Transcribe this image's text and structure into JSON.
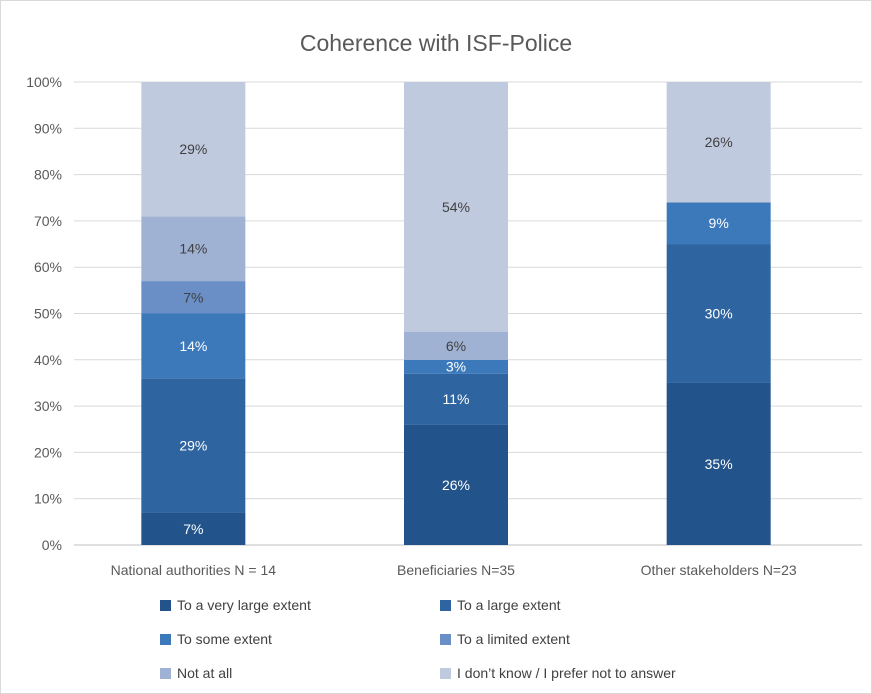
{
  "chart_data": {
    "type": "bar",
    "stacked": true,
    "title": "Coherence with ISF-Police",
    "categories": [
      "National authorities N = 14",
      "Beneficiaries N=35",
      "Other stakeholders N=23"
    ],
    "ylim": [
      0,
      100
    ],
    "yticks": [
      "0%",
      "10%",
      "20%",
      "30%",
      "40%",
      "50%",
      "60%",
      "70%",
      "80%",
      "90%",
      "100%"
    ],
    "grid": true,
    "legend_position": "bottom",
    "series": [
      {
        "name": "To a very large extent",
        "color": "#22538a",
        "label_color": "#ffffff",
        "values": [
          7,
          26,
          35
        ],
        "labels": [
          "7%",
          "26%",
          "35%"
        ]
      },
      {
        "name": "To a large extent",
        "color": "#2e65a0",
        "label_color": "#ffffff",
        "values": [
          29,
          11,
          30
        ],
        "labels": [
          "29%",
          "11%",
          "30%"
        ]
      },
      {
        "name": "To some extent",
        "color": "#3c79bb",
        "label_color": "#ffffff",
        "values": [
          14,
          3,
          9
        ],
        "labels": [
          "14%",
          "3%",
          "9%"
        ]
      },
      {
        "name": "To a limited extent",
        "color": "#6a8fc6",
        "label_color": "#404040",
        "values": [
          7,
          0,
          0
        ],
        "labels": [
          "7%",
          "",
          ""
        ]
      },
      {
        "name": "Not at all",
        "color": "#9fb2d4",
        "label_color": "#404040",
        "values": [
          14,
          6,
          0
        ],
        "labels": [
          "14%",
          "6%",
          ""
        ]
      },
      {
        "name": "I don’t know / I prefer not to answer",
        "color": "#c0cadf",
        "label_color": "#404040",
        "values": [
          29,
          54,
          26
        ],
        "labels": [
          "29%",
          "54%",
          "26%"
        ]
      }
    ]
  }
}
